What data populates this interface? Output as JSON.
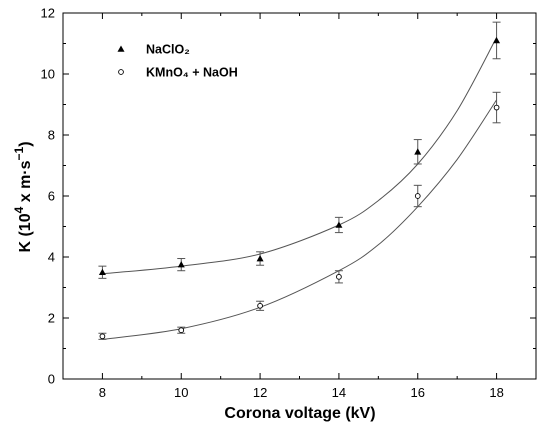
{
  "chart_data": {
    "type": "scatter",
    "xlabel": "Corona voltage (kV)",
    "ylabel": {
      "prefix": "K (10",
      "exp": "4",
      "mid": " x m·s",
      "exp2": "−1",
      "suffix": ")"
    },
    "xlim": [
      7,
      19
    ],
    "ylim": [
      0,
      12
    ],
    "xticks": [
      8,
      10,
      12,
      14,
      16,
      18
    ],
    "yticks": [
      0,
      2,
      4,
      6,
      8,
      10,
      12
    ],
    "grid": false,
    "legend_position": "top-left",
    "series": [
      {
        "name": "NaClO₂",
        "marker": "filled-triangle",
        "x": [
          8,
          10,
          12,
          14,
          16,
          18
        ],
        "y": [
          3.5,
          3.75,
          3.95,
          5.05,
          7.45,
          11.1
        ],
        "yerr": [
          0.2,
          0.2,
          0.22,
          0.25,
          0.4,
          0.6
        ],
        "fit": [
          [
            8,
            3.45
          ],
          [
            10,
            3.7
          ],
          [
            12,
            4.1
          ],
          [
            14,
            5.05
          ],
          [
            15,
            5.85
          ],
          [
            16,
            7.05
          ],
          [
            17,
            8.8
          ],
          [
            18,
            11.2
          ]
        ]
      },
      {
        "name": "KMnO₄ + NaOH",
        "marker": "open-circle",
        "x": [
          8,
          10,
          12,
          14,
          16,
          18
        ],
        "y": [
          1.4,
          1.6,
          2.4,
          3.35,
          6.0,
          8.9
        ],
        "yerr": [
          0.1,
          0.1,
          0.15,
          0.2,
          0.35,
          0.5
        ],
        "fit": [
          [
            8,
            1.3
          ],
          [
            10,
            1.65
          ],
          [
            12,
            2.35
          ],
          [
            14,
            3.55
          ],
          [
            15,
            4.4
          ],
          [
            16,
            5.65
          ],
          [
            17,
            7.2
          ],
          [
            18,
            9.15
          ]
        ]
      }
    ],
    "colors": {
      "axis": "#000000",
      "marker": "#000000",
      "fit_line": "#555555",
      "error_bar": "#555555"
    }
  }
}
